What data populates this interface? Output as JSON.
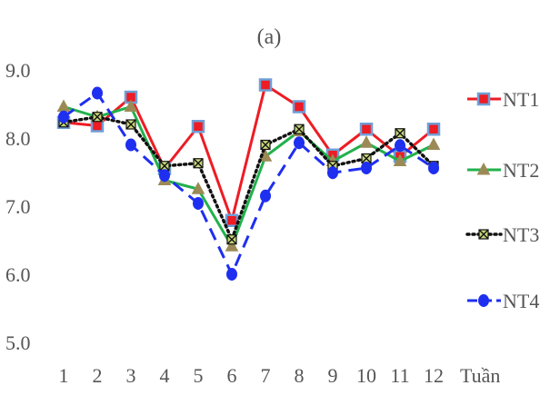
{
  "chart_data": {
    "type": "line",
    "title": "(a)",
    "xlabel": "Tuần",
    "ylabel": "",
    "categories": [
      "1",
      "2",
      "3",
      "4",
      "5",
      "6",
      "7",
      "8",
      "9",
      "10",
      "11",
      "12"
    ],
    "y_ticks": [
      "5.0",
      "6.0",
      "7.0",
      "8.0",
      "9.0"
    ],
    "ylim": [
      5.0,
      9.0
    ],
    "grid": false,
    "legend_position": "right",
    "series": [
      {
        "name": "NT1",
        "color": "#ee1c24",
        "marker_fill": "#ee1c24",
        "marker_stroke": "#6f9fd8",
        "marker": "square",
        "line_style": "solid",
        "values": [
          8.23,
          8.18,
          8.6,
          7.55,
          8.17,
          6.79,
          8.78,
          8.46,
          7.75,
          8.13,
          7.73,
          8.13
        ]
      },
      {
        "name": "NT2",
        "color": "#22b14c",
        "marker_fill": "#9c8a56",
        "marker_stroke": "#9c8a56",
        "marker": "triangle",
        "line_style": "solid",
        "values": [
          8.46,
          8.31,
          8.46,
          7.38,
          7.25,
          6.41,
          7.73,
          8.1,
          7.66,
          7.93,
          7.66,
          7.9
        ]
      },
      {
        "name": "NT3",
        "color": "#111111",
        "marker_fill": "#c8d77a",
        "marker_stroke": "#111111",
        "marker": "x-square",
        "line_style": "dotted",
        "values": [
          8.23,
          8.31,
          8.2,
          7.59,
          7.63,
          6.51,
          7.9,
          8.13,
          7.59,
          7.7,
          8.07,
          7.59
        ]
      },
      {
        "name": "NT4",
        "color": "#1f2ff0",
        "marker_fill": "#1f2ff0",
        "marker_stroke": "#1f2ff0",
        "marker": "circle",
        "line_style": "dashed",
        "values": [
          8.31,
          8.66,
          7.9,
          7.45,
          7.04,
          6.0,
          7.15,
          7.93,
          7.49,
          7.56,
          7.89,
          7.56
        ]
      }
    ]
  }
}
